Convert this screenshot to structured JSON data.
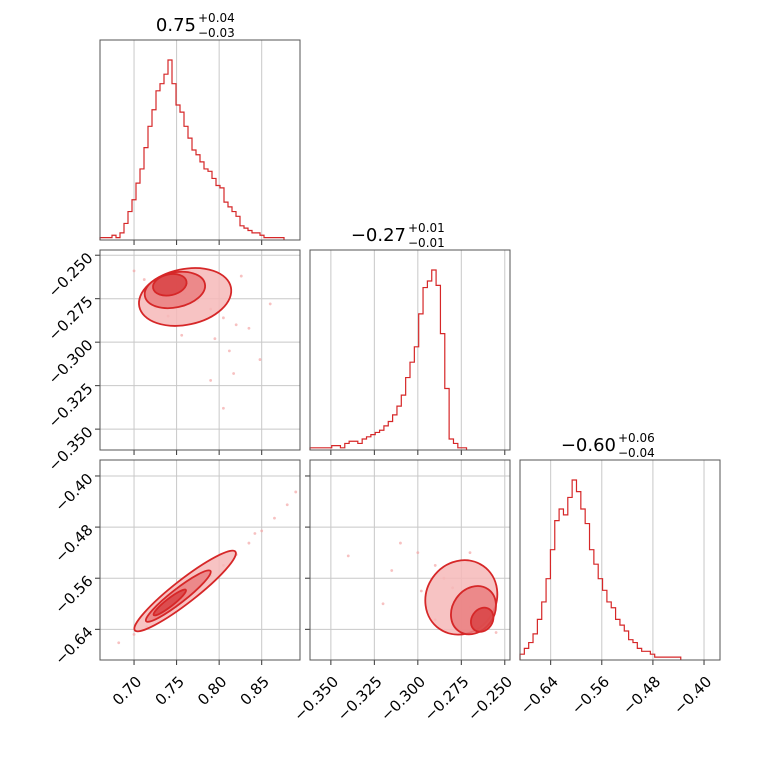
{
  "chart_data": {
    "type": "corner",
    "color": "#d62728",
    "grid": true,
    "titles": [
      {
        "value": "0.75",
        "plus": "+0.04",
        "minus": "−0.03"
      },
      {
        "value": "−0.27",
        "plus": "+0.01",
        "minus": "−0.01"
      },
      {
        "value": "−0.60",
        "plus": "+0.06",
        "minus": "−0.04"
      }
    ],
    "params": [
      {
        "range": [
          0.66,
          0.895
        ],
        "ticks": [
          0.7,
          0.75,
          0.8,
          0.85
        ],
        "tick_labels": [
          "0.70",
          "0.75",
          "0.80",
          "0.85"
        ]
      },
      {
        "range": [
          -0.362,
          -0.247
        ],
        "ticks": [
          -0.35,
          -0.325,
          -0.3,
          -0.275,
          -0.25
        ],
        "tick_labels": [
          "−0.350",
          "−0.325",
          "−0.300",
          "−0.275",
          "−0.250"
        ]
      },
      {
        "range": [
          -0.688,
          -0.375
        ],
        "ticks": [
          -0.64,
          -0.56,
          -0.48,
          -0.4
        ],
        "tick_labels": [
          "−0.64",
          "−0.56",
          "−0.48",
          "−0.40"
        ]
      }
    ],
    "histograms": [
      {
        "bin_edges_start": 0.66,
        "bin_width": 0.0047,
        "counts": [
          1,
          1,
          1,
          2,
          1,
          3,
          7,
          12,
          17,
          24,
          30,
          39,
          48,
          55,
          63,
          66,
          70,
          76,
          66,
          57,
          54,
          48,
          43,
          38,
          36,
          33,
          30,
          29,
          26,
          23,
          22,
          16,
          14,
          12,
          10,
          6,
          5,
          4,
          3,
          3,
          2,
          1,
          1,
          1,
          1,
          1
        ]
      },
      {
        "bin_edges_start": -0.362,
        "bin_width": 0.0025,
        "counts": [
          1,
          1,
          1,
          1,
          1,
          2,
          2,
          1,
          3,
          4,
          4,
          3,
          5,
          6,
          7,
          8,
          9,
          11,
          13,
          16,
          20,
          25,
          33,
          40,
          47,
          62,
          74,
          77,
          82,
          75,
          53,
          28,
          5,
          3,
          1,
          1
        ]
      },
      {
        "bin_edges_start": -0.688,
        "bin_width": 0.0068,
        "counts": [
          2,
          4,
          6,
          9,
          14,
          20,
          28,
          38,
          48,
          52,
          50,
          56,
          62,
          58,
          52,
          47,
          38,
          33,
          28,
          24,
          20,
          18,
          14,
          12,
          10,
          7,
          6,
          4,
          3,
          3,
          2,
          1,
          1,
          1,
          1,
          1,
          1
        ]
      }
    ],
    "pairs": [
      {
        "x_param": 0,
        "y_param": 1,
        "regions": [
          {
            "center": [
              0.76,
              -0.274
            ],
            "sx": 0.055,
            "sy": 0.016,
            "angle_deg": -12,
            "level": 1
          },
          {
            "center": [
              0.748,
              -0.27
            ],
            "sx": 0.036,
            "sy": 0.01,
            "angle_deg": -12,
            "level": 2
          },
          {
            "center": [
              0.742,
              -0.267
            ],
            "sx": 0.02,
            "sy": 0.006,
            "angle_deg": -12,
            "level": 3
          }
        ],
        "points": [
          [
            0.712,
            -0.264
          ],
          [
            0.73,
            -0.267
          ],
          [
            0.745,
            -0.27
          ],
          [
            0.76,
            -0.272
          ],
          [
            0.775,
            -0.276
          ],
          [
            0.79,
            -0.281
          ],
          [
            0.805,
            -0.286
          ],
          [
            0.82,
            -0.29
          ],
          [
            0.835,
            -0.292
          ],
          [
            0.826,
            -0.262
          ],
          [
            0.812,
            -0.305
          ],
          [
            0.795,
            -0.298
          ],
          [
            0.756,
            -0.296
          ],
          [
            0.848,
            -0.31
          ],
          [
            0.79,
            -0.322
          ],
          [
            0.74,
            -0.285
          ],
          [
            0.77,
            -0.262
          ],
          [
            0.817,
            -0.318
          ],
          [
            0.86,
            -0.278
          ],
          [
            0.7,
            -0.259
          ],
          [
            0.725,
            -0.28
          ],
          [
            0.805,
            -0.338
          ]
        ]
      },
      {
        "x_param": 0,
        "y_param": 2,
        "regions": [
          {
            "center": [
              0.76,
              -0.58
            ],
            "sx": 0.075,
            "sy": 0.018,
            "angle_deg": -38,
            "level": 1
          },
          {
            "center": [
              0.752,
              -0.588
            ],
            "sx": 0.048,
            "sy": 0.011,
            "angle_deg": -38,
            "level": 2
          },
          {
            "center": [
              0.742,
              -0.598
            ],
            "sx": 0.024,
            "sy": 0.006,
            "angle_deg": -38,
            "level": 3
          }
        ],
        "points": [
          [
            0.7,
            -0.648
          ],
          [
            0.715,
            -0.636
          ],
          [
            0.73,
            -0.62
          ],
          [
            0.745,
            -0.604
          ],
          [
            0.76,
            -0.588
          ],
          [
            0.775,
            -0.572
          ],
          [
            0.79,
            -0.556
          ],
          [
            0.805,
            -0.54
          ],
          [
            0.82,
            -0.523
          ],
          [
            0.835,
            -0.505
          ],
          [
            0.85,
            -0.486
          ],
          [
            0.865,
            -0.466
          ],
          [
            0.88,
            -0.445
          ],
          [
            0.89,
            -0.425
          ],
          [
            0.682,
            -0.661
          ],
          [
            0.842,
            -0.49
          ]
        ]
      },
      {
        "x_param": 1,
        "y_param": 2,
        "regions": [
          {
            "center": [
              -0.275,
              -0.59
            ],
            "sx": 0.02,
            "sy": 0.06,
            "angle_deg": 35,
            "level": 1
          },
          {
            "center": [
              -0.268,
              -0.61
            ],
            "sx": 0.012,
            "sy": 0.04,
            "angle_deg": 35,
            "level": 2
          },
          {
            "center": [
              -0.263,
              -0.625
            ],
            "sx": 0.006,
            "sy": 0.02,
            "angle_deg": 35,
            "level": 3
          }
        ],
        "points": [
          [
            -0.31,
            -0.505
          ],
          [
            -0.3,
            -0.52
          ],
          [
            -0.29,
            -0.54
          ],
          [
            -0.285,
            -0.56
          ],
          [
            -0.28,
            -0.575
          ],
          [
            -0.275,
            -0.59
          ],
          [
            -0.27,
            -0.605
          ],
          [
            -0.265,
            -0.62
          ],
          [
            -0.26,
            -0.635
          ],
          [
            -0.255,
            -0.645
          ],
          [
            -0.315,
            -0.548
          ],
          [
            -0.298,
            -0.58
          ],
          [
            -0.27,
            -0.52
          ],
          [
            -0.32,
            -0.6
          ],
          [
            -0.34,
            -0.525
          ],
          [
            -0.29,
            -0.625
          ]
        ]
      }
    ]
  }
}
